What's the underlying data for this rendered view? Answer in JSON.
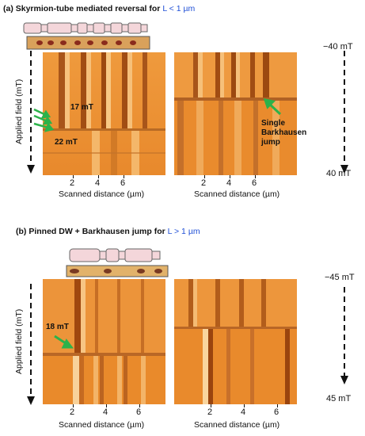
{
  "panel_a": {
    "caption_prefix": "(a) Skyrmion-tube mediated reversal for ",
    "caption_cond": "L < 1 µm",
    "field_top": "−40 mT",
    "field_bottom": "40 mT",
    "ylabel": "Applied field  (mT)",
    "xlabel": "Scanned distance (µm)",
    "ticks": [
      "2",
      "4",
      "6"
    ],
    "annotations": {
      "a1": "17 mT",
      "a2": "22 mT",
      "barkhausen": "Single\nBarkhausen\njump"
    }
  },
  "panel_b": {
    "caption_prefix": "(b) Pinned DW + Barkhausen jump for ",
    "caption_cond": "L > 1 µm",
    "field_top": "−45 mT",
    "field_bottom": "45 mT",
    "ylabel": "Applied field  (mT)",
    "xlabel": "Scanned distance (µm)",
    "ticks": [
      "2",
      "4",
      "6"
    ],
    "annotations": {
      "b1": "18 mT"
    }
  },
  "colors": {
    "map_base": "#e88a2a",
    "map_dark": "#9a4d0f",
    "map_light": "#f7c988",
    "arrow": "#2cb24a"
  }
}
